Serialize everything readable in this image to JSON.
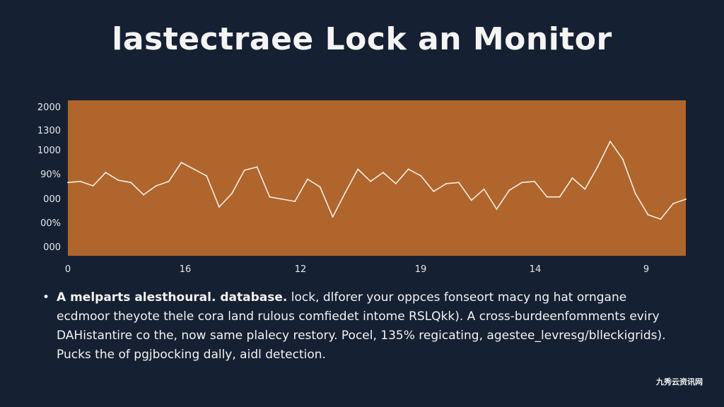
{
  "title": "lastectraee Lock an Monitor",
  "colors": {
    "background": "#162033",
    "plot_fill": "#b0652c",
    "line": "#f3efe6",
    "text": "#f2f2f2"
  },
  "chart_data": {
    "type": "line",
    "title": "lastectraee Lock an Monitor",
    "xlabel": "",
    "ylabel": "",
    "y_tick_labels": [
      "2000",
      "1300",
      "1000",
      "90%",
      "000",
      "00%",
      "000"
    ],
    "x_tick_labels": [
      "0",
      "16",
      "12",
      "19",
      "14",
      "9"
    ],
    "ylim": [
      0,
      7
    ],
    "xlim": [
      0,
      49
    ],
    "grid": false,
    "series": [
      {
        "x": [
          0,
          1,
          2,
          3,
          4,
          5,
          6,
          7,
          8,
          9,
          10,
          11,
          12,
          13,
          14,
          15,
          16,
          17,
          18,
          19,
          20,
          21,
          22,
          23,
          24,
          25,
          26,
          27,
          28,
          29,
          30,
          31,
          32,
          33,
          34,
          35,
          36,
          37,
          38,
          39,
          40,
          41,
          42,
          43,
          44,
          45,
          46,
          47,
          48,
          49
        ],
        "values": [
          3.3,
          3.35,
          3.15,
          3.75,
          3.4,
          3.3,
          2.75,
          3.15,
          3.35,
          4.2,
          3.9,
          3.6,
          2.2,
          2.8,
          3.85,
          4.0,
          2.65,
          2.55,
          2.45,
          3.45,
          3.1,
          1.75,
          2.85,
          3.9,
          3.35,
          3.75,
          3.25,
          3.9,
          3.6,
          2.9,
          3.25,
          3.3,
          2.5,
          3.0,
          2.1,
          2.95,
          3.3,
          3.35,
          2.65,
          2.65,
          3.5,
          3.0,
          4.0,
          5.15,
          4.35,
          2.8,
          1.85,
          1.65,
          2.35,
          2.55
        ]
      }
    ]
  },
  "description": {
    "lead": "A melparts alesthoural. database.",
    "line1_rest": " lock, dlforer your oppces fonseort macy ng hat orngane",
    "line2": "ecdmoor theyote thele cora land rulous comfiedet intome RSLQkk). A cross-burdeenfomments eviry",
    "line3": "DAHistantire co the, now same plalecy restory. Pocel, 135% regicating, agestee_levresg/blleckigrids).",
    "line4": "Pucks the of pgjbocking dally, aidl detection."
  },
  "watermark": "九秀云资讯网"
}
